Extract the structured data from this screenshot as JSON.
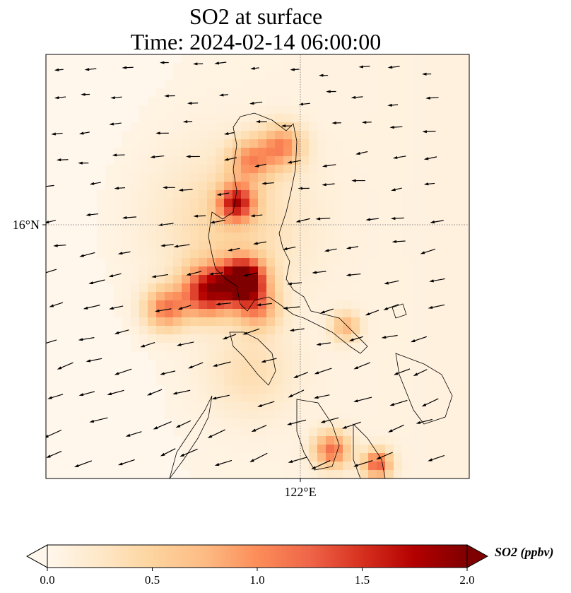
{
  "title": {
    "line1": "SO2 at surface",
    "line2": "Time: 2024-02-14 06:00:00"
  },
  "axes": {
    "x_tick": "122°E",
    "y_tick": "16°N"
  },
  "colorbar": {
    "label": "SO2 (ppbv)",
    "ticks": [
      "0.0",
      "0.5",
      "1.0",
      "1.5",
      "2.0"
    ],
    "range": [
      0,
      2.0
    ],
    "colormap": [
      "#fff7ec",
      "#fee8c8",
      "#fdd49e",
      "#fdbb84",
      "#fc8d59",
      "#ef6548",
      "#d7301f",
      "#b30000",
      "#7f0000"
    ]
  },
  "chart_data": {
    "type": "heatmap",
    "title": "SO2 at surface / Time: 2024-02-14 06:00:00",
    "colorbar_label": "SO2 (ppbv)",
    "clim": [
      0,
      2.0
    ],
    "gridlines": {
      "lon": [
        122
      ],
      "lat": [
        16
      ]
    },
    "lon_range": [
      118.4,
      124.4
    ],
    "lat_range": [
      12.4,
      18.4
    ],
    "hotspots": [
      {
        "lon": 121.2,
        "lat": 15.2,
        "value": 2.2,
        "spread": 0.3
      },
      {
        "lon": 120.7,
        "lat": 15.05,
        "value": 1.6,
        "spread": 0.35
      },
      {
        "lon": 120.1,
        "lat": 14.8,
        "value": 1.0,
        "spread": 0.3
      },
      {
        "lon": 121.1,
        "lat": 16.3,
        "value": 1.4,
        "spread": 0.25
      },
      {
        "lon": 121.3,
        "lat": 16.9,
        "value": 0.8,
        "spread": 0.3
      },
      {
        "lon": 121.75,
        "lat": 17.1,
        "value": 0.9,
        "spread": 0.3
      },
      {
        "lon": 121.4,
        "lat": 14.8,
        "value": 0.8,
        "spread": 0.3
      },
      {
        "lon": 122.65,
        "lat": 14.55,
        "value": 0.7,
        "spread": 0.2
      },
      {
        "lon": 122.45,
        "lat": 12.8,
        "value": 1.1,
        "spread": 0.25
      },
      {
        "lon": 123.1,
        "lat": 12.6,
        "value": 1.2,
        "spread": 0.2
      },
      {
        "lon": 121.0,
        "lat": 16.0,
        "value": 0.4,
        "spread": 1.0
      },
      {
        "lon": 121.3,
        "lat": 13.9,
        "value": 0.3,
        "spread": 0.6
      }
    ]
  }
}
